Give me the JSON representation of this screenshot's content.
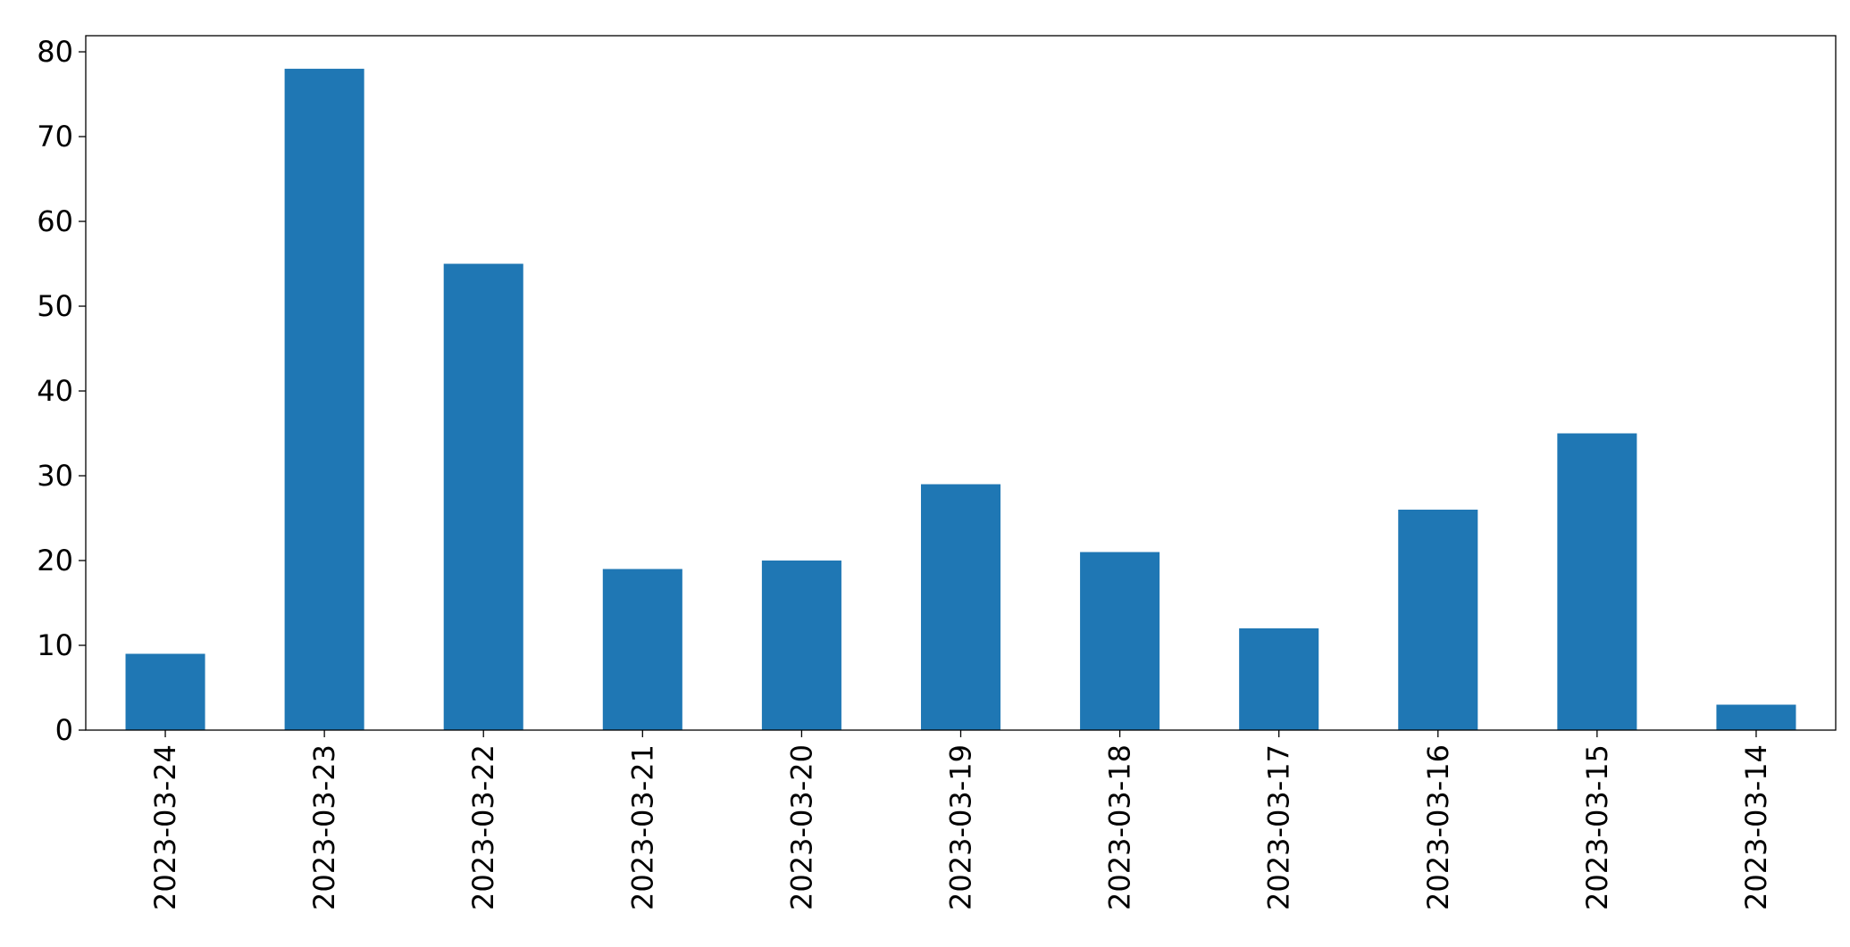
{
  "chart_data": {
    "type": "bar",
    "categories": [
      "2023-03-24",
      "2023-03-23",
      "2023-03-22",
      "2023-03-21",
      "2023-03-20",
      "2023-03-19",
      "2023-03-18",
      "2023-03-17",
      "2023-03-16",
      "2023-03-15",
      "2023-03-14"
    ],
    "values": [
      9,
      78,
      55,
      19,
      20,
      29,
      21,
      12,
      26,
      35,
      3
    ],
    "color": "#1f77b4",
    "ylim": [
      0,
      81.9
    ],
    "yticks": [
      0,
      10,
      20,
      30,
      40,
      50,
      60,
      70,
      80
    ],
    "grid": false
  }
}
